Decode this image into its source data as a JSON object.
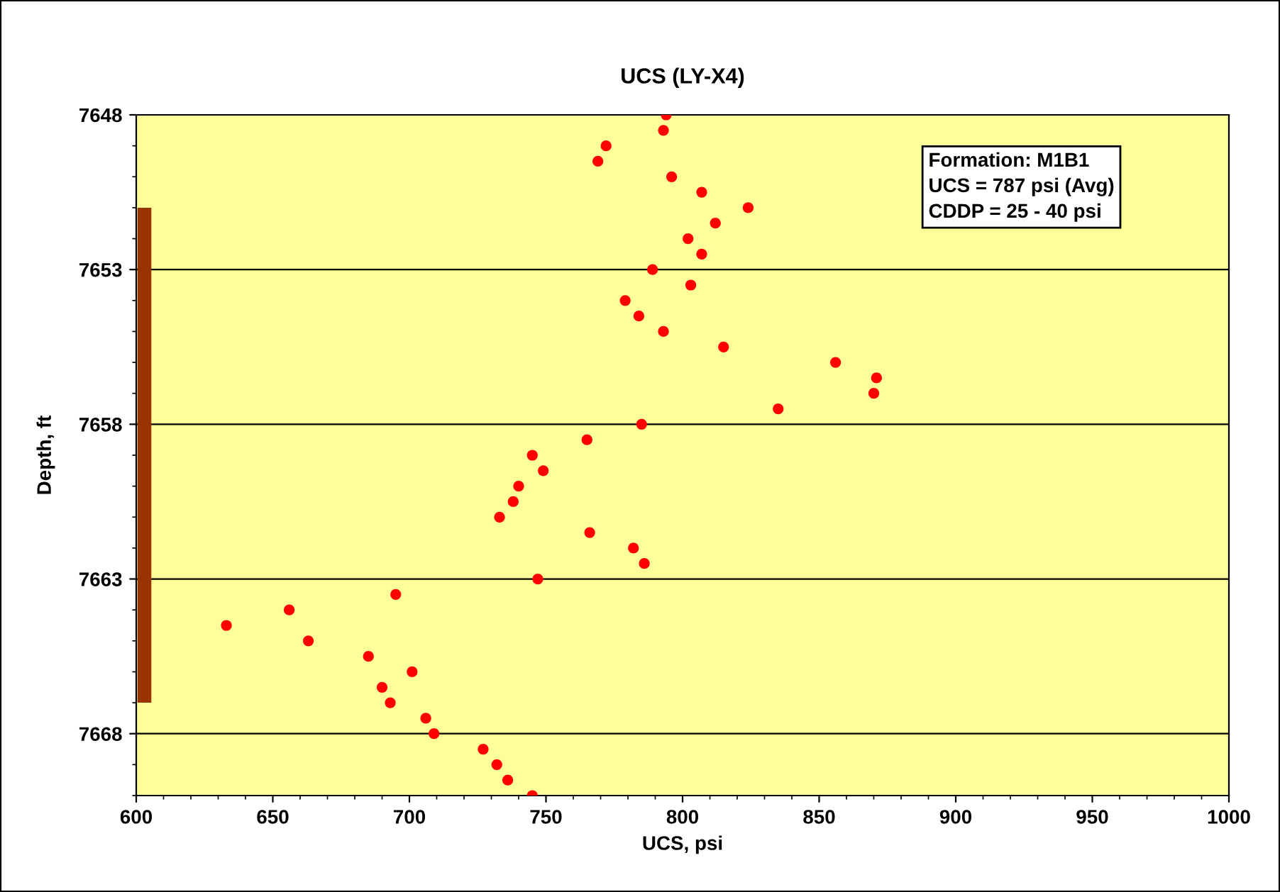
{
  "chart_data": {
    "type": "scatter",
    "title": "UCS (LY-X4)",
    "xlabel": "UCS, psi",
    "ylabel": "Depth, ft",
    "annotations": [
      "Formation: M1B1\nUCS = 787 psi (Avg)\nCDDP = 25 - 40 psi"
    ],
    "series": [
      {
        "color": "#ff0000",
        "marker": "circle",
        "x": [
          794,
          793,
          772,
          769,
          796,
          807,
          824,
          812,
          802,
          807,
          789,
          803,
          779,
          784,
          793,
          815,
          856,
          871,
          870,
          835,
          785,
          765,
          745,
          749,
          740,
          738,
          733,
          766,
          782,
          786,
          747,
          695,
          656,
          633,
          663,
          685,
          701,
          690,
          693,
          706,
          709,
          727,
          732,
          736,
          745
        ],
        "values": [
          7648,
          7648.5,
          7649,
          7649.5,
          7650,
          7650.5,
          7651,
          7651.5,
          7652,
          7652.5,
          7653,
          7653.5,
          7654,
          7654.5,
          7655,
          7655.5,
          7656,
          7656.5,
          7657,
          7657.5,
          7658,
          7658.5,
          7659,
          7659.5,
          7660,
          7660.5,
          7661,
          7661.5,
          7662,
          7662.5,
          7663,
          7663.5,
          7664,
          7664.5,
          7665,
          7665.5,
          7666,
          7666.5,
          7667,
          7667.5,
          7668,
          7668.5,
          7669,
          7669.5,
          7670
        ]
      },
      {
        "type": "line",
        "color": "#993300",
        "marker": "none",
        "x": [
          603,
          603
        ],
        "values": [
          7651,
          7667
        ]
      }
    ],
    "xlim": [
      600,
      1000
    ],
    "ylim": [
      7670,
      7648
    ],
    "xticks": [
      600,
      650,
      700,
      750,
      800,
      850,
      900,
      950,
      1000
    ],
    "yticks": [
      7648,
      7653,
      7658,
      7663,
      7668
    ],
    "grid": "y",
    "legend": false
  }
}
